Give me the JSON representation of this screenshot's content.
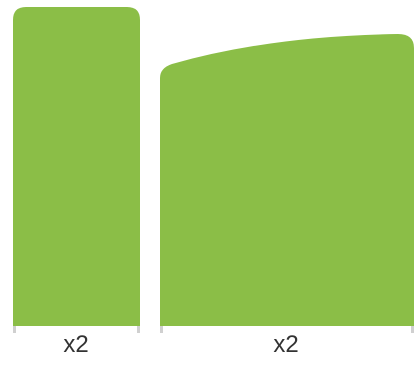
{
  "panels": [
    {
      "name": "narrow",
      "shape": "rounded-rectangle",
      "quantity_label": "x2"
    },
    {
      "name": "wide",
      "shape": "curved-top",
      "quantity_label": "x2"
    }
  ],
  "colors": {
    "panel_fill": "#8bbe47",
    "foot": "#d0d0d0",
    "label_text": "#333333"
  }
}
